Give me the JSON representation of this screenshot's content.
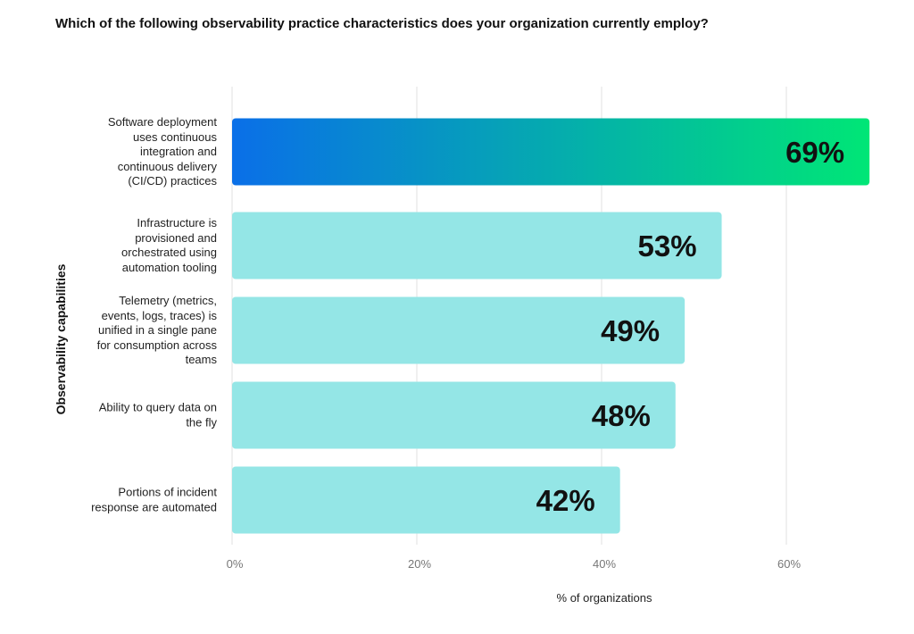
{
  "chart_data": {
    "type": "bar",
    "orientation": "horizontal",
    "title": "Which of the following observability practice characteristics does your organization currently employ?",
    "xlabel": "% of organizations",
    "ylabel": "Observability capabilities",
    "xlim": [
      0,
      70
    ],
    "xticks": [
      "0%",
      "20%",
      "40%",
      "60%"
    ],
    "xtick_values": [
      0,
      20,
      40,
      60
    ],
    "grid": true,
    "categories": [
      "Software deployment uses continuous integration and continuous delivery (CI/CD) practices",
      "Infrastructure is provisioned and orchestrated using automation tooling",
      "Telemetry (metrics, events, logs, traces) is unified in a single pane for consumption across teams",
      "Ability to query data on the fly",
      "Portions of incident response are automated"
    ],
    "values": [
      69,
      53,
      49,
      48,
      42
    ],
    "data_labels": [
      "69%",
      "53%",
      "49%",
      "48%",
      "42%"
    ],
    "colors": {
      "highlight_gradient": [
        "#0a6fe8",
        "#00e676"
      ],
      "bar": "#94e6e6",
      "grid": "#e2e2e2",
      "label": "#111111"
    }
  }
}
